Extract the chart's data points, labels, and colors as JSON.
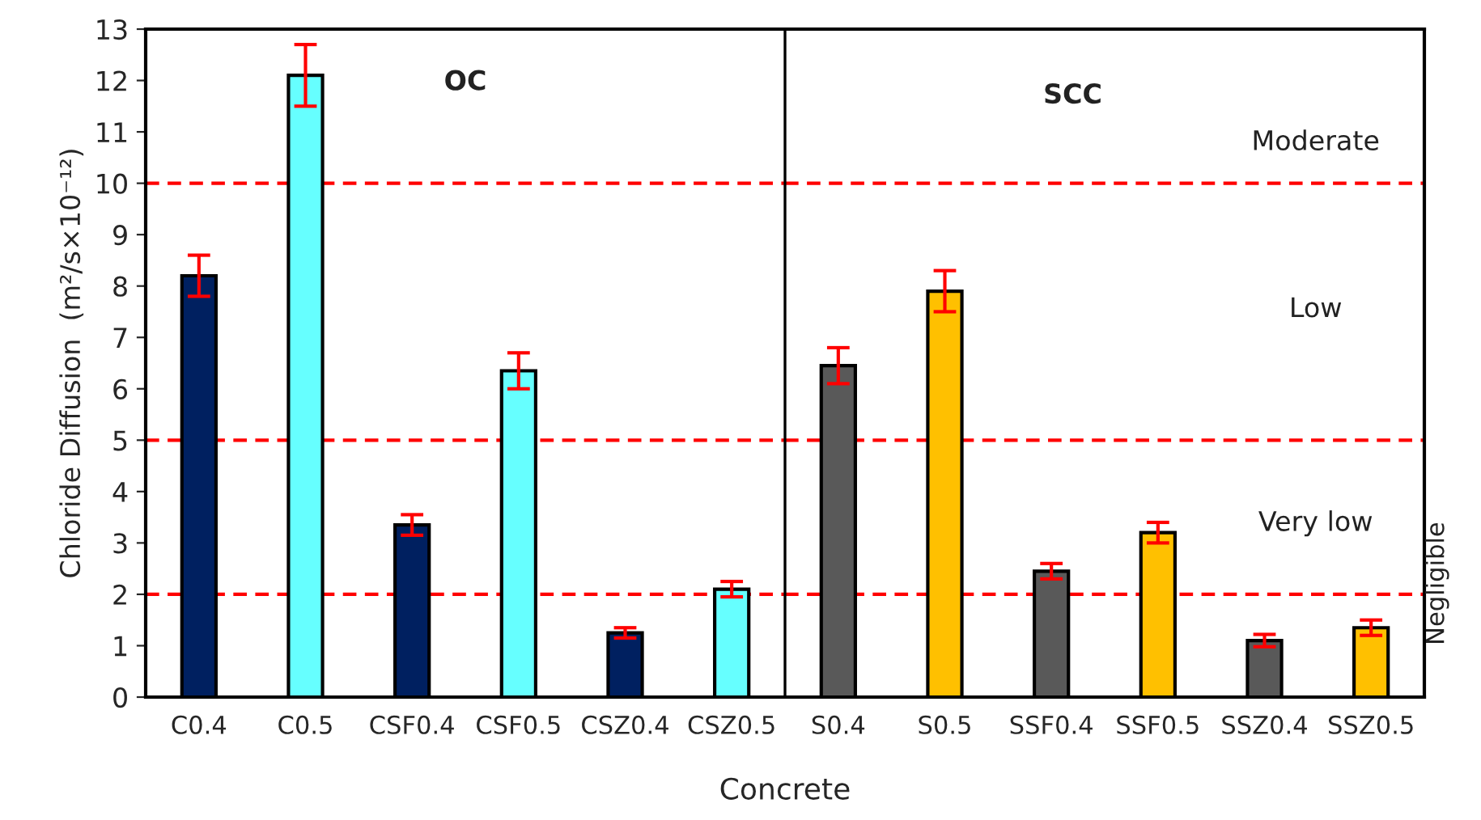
{
  "chart_data": [
    {
      "type": "bar",
      "xlabel": "Concrete",
      "ylabel": "Chloride Diffusion  (m²/s×10⁻¹²)",
      "categories": [
        "C0.4",
        "C0.5",
        "CSF0.4",
        "CSF0.5",
        "CSZ0.4",
        "CSZ0.5"
      ],
      "values": [
        8.2,
        12.1,
        3.35,
        6.35,
        1.25,
        2.1
      ],
      "errors": [
        0.4,
        0.6,
        0.2,
        0.35,
        0.1,
        0.15
      ],
      "colors": [
        "#002060",
        "#66ffff",
        "#002060",
        "#66ffff",
        "#002060",
        "#66ffff"
      ],
      "ylim": [
        0,
        13
      ],
      "yticks": [
        0,
        1,
        2,
        3,
        4,
        5,
        6,
        7,
        8,
        9,
        10,
        11,
        12,
        13
      ],
      "ref_lines": [
        {
          "axis": "y",
          "value": 10,
          "color": "#ff0000",
          "line_style": "dashed"
        },
        {
          "axis": "y",
          "value": 5,
          "color": "#ff0000",
          "line_style": "dashed"
        },
        {
          "axis": "y",
          "value": 2,
          "color": "#ff0000",
          "line_style": "dashed"
        }
      ],
      "annotations": [
        "OC"
      ]
    },
    {
      "type": "bar",
      "categories": [
        "S0.4",
        "S0.5",
        "SSF0.4",
        "SSF0.5",
        "SSZ0.4",
        "SSZ0.5"
      ],
      "values": [
        6.45,
        7.9,
        2.45,
        3.2,
        1.1,
        1.35
      ],
      "errors": [
        0.35,
        0.4,
        0.15,
        0.2,
        0.12,
        0.15
      ],
      "colors": [
        "#595959",
        "#ffc000",
        "#595959",
        "#ffc000",
        "#595959",
        "#ffc000"
      ],
      "ylim": [
        0,
        13
      ],
      "tick_labels": "x",
      "ref_lines": [
        {
          "axis": "y",
          "value": 10,
          "color": "#ff0000",
          "line_style": "dashed"
        },
        {
          "axis": "y",
          "value": 5,
          "color": "#ff0000",
          "line_style": "dashed"
        },
        {
          "axis": "y",
          "value": 2,
          "color": "#ff0000",
          "line_style": "dashed"
        }
      ],
      "annotations": [
        "SCC",
        "Moderate",
        "Low",
        "Very low",
        "Negligible"
      ]
    }
  ]
}
